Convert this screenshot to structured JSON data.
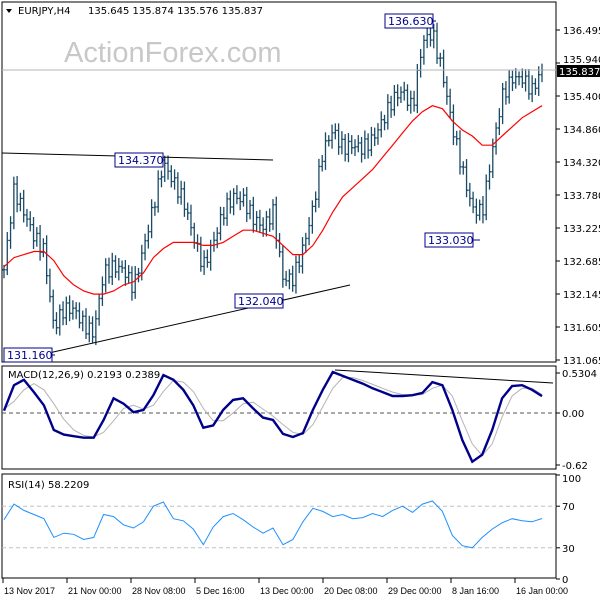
{
  "header": {
    "symbol": "EURJPY,H4",
    "ohlc": "135.645 135.874 135.576 135.837"
  },
  "watermark": "ActionForex.com",
  "colors": {
    "bars": "#1a4a66",
    "ma": "#ff0000",
    "macd": "#00008b",
    "signal": "#b4b4b4",
    "rsi": "#1e90ff",
    "label_border": "#00008b",
    "current_price_bg": "#000000"
  },
  "chart_data": [
    {
      "type": "ohlc-bar",
      "title": "EURJPY,H4",
      "x_ticks": [
        "13 Nov 2017",
        "21 Nov 00:00",
        "28 Nov 08:00",
        "5 Dec 16:00",
        "13 Dec 00:00",
        "20 Dec 08:00",
        "29 Dec 00:00",
        "8 Jan 16:00",
        "16 Jan 00:00"
      ],
      "y_ticks": [
        "136.495",
        "135.940",
        "135.400",
        "134.860",
        "134.320",
        "133.780",
        "133.225",
        "132.685",
        "132.145",
        "131.605",
        "131.065"
      ],
      "ylim": [
        131.065,
        136.495
      ],
      "current_price": "135.837",
      "price_path": [
        132.55,
        133.86,
        133.5,
        133.1,
        132.87,
        131.6,
        131.9,
        131.9,
        131.65,
        131.5,
        132.5,
        132.6,
        132.55,
        132.25,
        132.9,
        133.6,
        134.3,
        134.0,
        133.7,
        133.1,
        132.6,
        133.0,
        133.5,
        133.75,
        133.7,
        133.4,
        133.25,
        133.5,
        132.4,
        132.4,
        132.9,
        133.55,
        134.5,
        134.85,
        134.55,
        134.6,
        134.55,
        134.7,
        135.0,
        135.35,
        135.5,
        135.2,
        136.3,
        136.45,
        135.8,
        134.9,
        134.2,
        133.55,
        133.5,
        134.5,
        135.4,
        135.7,
        135.7,
        135.5,
        135.837
      ],
      "moving_average": [
        132.6,
        132.75,
        132.8,
        132.85,
        132.85,
        132.7,
        132.45,
        132.3,
        132.2,
        132.15,
        132.15,
        132.2,
        132.3,
        132.35,
        132.5,
        132.75,
        132.9,
        133.0,
        133.0,
        133.0,
        132.95,
        132.95,
        133.0,
        133.1,
        133.2,
        133.2,
        133.15,
        133.1,
        132.95,
        132.8,
        132.8,
        132.95,
        133.2,
        133.5,
        133.75,
        133.9,
        134.05,
        134.2,
        134.4,
        134.6,
        134.8,
        135.0,
        135.15,
        135.25,
        135.2,
        135.0,
        134.85,
        134.75,
        134.6,
        134.6,
        134.75,
        134.9,
        135.05,
        135.15,
        135.25
      ],
      "annotations": [
        {
          "text": "136.630",
          "price": 136.63
        },
        {
          "text": "134.370",
          "price": 134.37
        },
        {
          "text": "132.040",
          "price": 132.04
        },
        {
          "text": "131.160",
          "price": 131.16
        },
        {
          "text": "133.030",
          "price": 133.03
        }
      ]
    },
    {
      "type": "line",
      "title": "MACD(12,26,9) 0.2193 0.2389",
      "y_ticks": [
        "0.5304",
        "0.00",
        "-0.62"
      ],
      "series": [
        {
          "name": "MACD",
          "values": [
            0.03,
            0.36,
            0.43,
            0.27,
            0.1,
            -0.22,
            -0.28,
            -0.3,
            -0.32,
            -0.32,
            -0.09,
            0.19,
            0.12,
            0.01,
            0.04,
            0.23,
            0.49,
            0.43,
            0.3,
            0.1,
            -0.19,
            -0.16,
            0.04,
            0.17,
            0.19,
            0.06,
            -0.06,
            -0.09,
            -0.27,
            -0.31,
            -0.26,
            0.04,
            0.3,
            0.53,
            0.48,
            0.43,
            0.38,
            0.32,
            0.27,
            0.22,
            0.22,
            0.23,
            0.26,
            0.4,
            0.36,
            0.04,
            -0.35,
            -0.63,
            -0.54,
            -0.22,
            0.19,
            0.35,
            0.36,
            0.3,
            0.2193
          ]
        },
        {
          "name": "Signal",
          "values": [
            0.05,
            0.15,
            0.3,
            0.38,
            0.3,
            0.12,
            -0.08,
            -0.22,
            -0.29,
            -0.31,
            -0.25,
            -0.1,
            0.06,
            0.1,
            0.05,
            0.1,
            0.28,
            0.42,
            0.4,
            0.28,
            0.06,
            -0.1,
            -0.1,
            0.0,
            0.12,
            0.14,
            0.05,
            -0.04,
            -0.15,
            -0.25,
            -0.28,
            -0.15,
            0.08,
            0.32,
            0.46,
            0.46,
            0.42,
            0.37,
            0.32,
            0.27,
            0.24,
            0.23,
            0.24,
            0.32,
            0.36,
            0.22,
            -0.1,
            -0.4,
            -0.55,
            -0.4,
            -0.05,
            0.22,
            0.32,
            0.32,
            0.2389
          ]
        }
      ]
    },
    {
      "type": "line",
      "title": "RSI(14) 58.2209",
      "y_ticks": [
        "100",
        "70",
        "30",
        "0"
      ],
      "ylim": [
        0,
        100
      ],
      "levels": [
        70,
        30
      ],
      "series": [
        {
          "name": "RSI",
          "values": [
            57,
            72,
            66,
            62,
            58,
            40,
            44,
            43,
            38,
            40,
            62,
            60,
            52,
            49,
            55,
            70,
            74,
            58,
            56,
            48,
            33,
            50,
            60,
            63,
            57,
            50,
            44,
            49,
            33,
            38,
            55,
            68,
            65,
            60,
            62,
            58,
            59,
            63,
            60,
            66,
            70,
            64,
            72,
            75,
            65,
            42,
            32,
            30,
            40,
            48,
            54,
            58,
            56,
            55,
            58.22
          ]
        }
      ]
    }
  ]
}
